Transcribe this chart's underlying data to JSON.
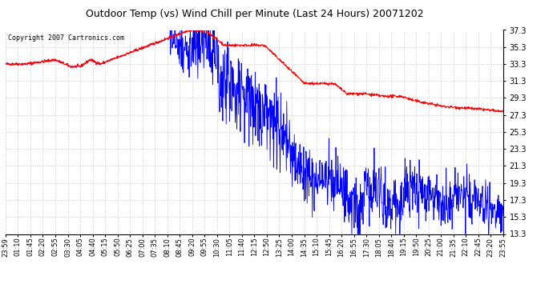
{
  "title": "Outdoor Temp (vs) Wind Chill per Minute (Last 24 Hours) 20071202",
  "copyright_text": "Copyright 2007 Cartronics.com",
  "ylim": [
    13.3,
    37.3
  ],
  "yticks": [
    13.3,
    15.3,
    17.3,
    19.3,
    21.3,
    23.3,
    25.3,
    27.3,
    29.3,
    31.3,
    33.3,
    35.3,
    37.3
  ],
  "x_labels": [
    "23:59",
    "01:10",
    "01:45",
    "02:20",
    "02:55",
    "03:30",
    "04:05",
    "04:40",
    "05:15",
    "05:50",
    "06:25",
    "07:00",
    "07:35",
    "08:10",
    "08:45",
    "09:20",
    "09:55",
    "10:30",
    "11:05",
    "11:40",
    "12:15",
    "12:50",
    "13:25",
    "14:00",
    "14:35",
    "15:10",
    "15:45",
    "16:20",
    "16:55",
    "17:30",
    "18:05",
    "18:40",
    "19:15",
    "19:50",
    "20:25",
    "21:00",
    "21:35",
    "22:10",
    "22:45",
    "23:20",
    "23:55"
  ],
  "red_color": "#ff0000",
  "blue_color": "#0000ff",
  "background_color": "#ffffff",
  "grid_color": "#c8c8c8",
  "title_fontsize": 9,
  "copyright_fontsize": 6,
  "tick_fontsize": 6,
  "y_tick_fontsize": 7
}
